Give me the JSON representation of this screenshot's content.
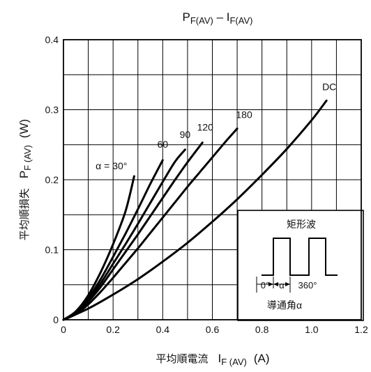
{
  "chart_data": {
    "type": "line",
    "title": {
      "p": "P",
      "p_sub": "F(AV)",
      "dash": " – ",
      "i": "I",
      "i_sub": "F(AV)"
    },
    "xlabel": {
      "jp": "平均順電流",
      "sym": "I",
      "sub": "F (AV)",
      "unit": "(A)"
    },
    "ylabel": {
      "jp": "平均順損失",
      "sym": "P",
      "sub": "F (AV)",
      "unit": "(W)"
    },
    "xlim": [
      0,
      1.2
    ],
    "ylim": [
      0,
      0.4
    ],
    "x_ticks": [
      "0",
      "0.2",
      "0.4",
      "0.6",
      "0.8",
      "1.0",
      "1.2"
    ],
    "y_ticks": [
      "0",
      "0.1",
      "0.2",
      "0.3",
      "0.4"
    ],
    "grid": true,
    "series": [
      {
        "name": "α = 30°",
        "points": [
          [
            0,
            0
          ],
          [
            0.05,
            0.012
          ],
          [
            0.1,
            0.035
          ],
          [
            0.15,
            0.068
          ],
          [
            0.2,
            0.108
          ],
          [
            0.25,
            0.155
          ],
          [
            0.285,
            0.205
          ]
        ]
      },
      {
        "name": "60",
        "points": [
          [
            0,
            0
          ],
          [
            0.05,
            0.011
          ],
          [
            0.1,
            0.031
          ],
          [
            0.15,
            0.058
          ],
          [
            0.2,
            0.09
          ],
          [
            0.25,
            0.123
          ],
          [
            0.3,
            0.158
          ],
          [
            0.35,
            0.194
          ],
          [
            0.4,
            0.228
          ]
        ]
      },
      {
        "name": "90",
        "points": [
          [
            0,
            0
          ],
          [
            0.05,
            0.01
          ],
          [
            0.1,
            0.028
          ],
          [
            0.15,
            0.052
          ],
          [
            0.2,
            0.08
          ],
          [
            0.25,
            0.108
          ],
          [
            0.3,
            0.137
          ],
          [
            0.35,
            0.167
          ],
          [
            0.4,
            0.197
          ],
          [
            0.45,
            0.226
          ],
          [
            0.49,
            0.243
          ]
        ]
      },
      {
        "name": "120",
        "points": [
          [
            0,
            0
          ],
          [
            0.05,
            0.009
          ],
          [
            0.1,
            0.026
          ],
          [
            0.15,
            0.047
          ],
          [
            0.2,
            0.072
          ],
          [
            0.25,
            0.097
          ],
          [
            0.3,
            0.122
          ],
          [
            0.35,
            0.148
          ],
          [
            0.4,
            0.174
          ],
          [
            0.45,
            0.2
          ],
          [
            0.5,
            0.225
          ],
          [
            0.56,
            0.253
          ]
        ]
      },
      {
        "name": "180",
        "points": [
          [
            0,
            0
          ],
          [
            0.05,
            0.008
          ],
          [
            0.1,
            0.022
          ],
          [
            0.15,
            0.04
          ],
          [
            0.2,
            0.06
          ],
          [
            0.25,
            0.081
          ],
          [
            0.3,
            0.102
          ],
          [
            0.35,
            0.124
          ],
          [
            0.4,
            0.146
          ],
          [
            0.45,
            0.168
          ],
          [
            0.5,
            0.19
          ],
          [
            0.55,
            0.211
          ],
          [
            0.6,
            0.232
          ],
          [
            0.65,
            0.253
          ],
          [
            0.7,
            0.273
          ]
        ]
      },
      {
        "name": "DC",
        "points": [
          [
            0,
            0
          ],
          [
            0.1,
            0.016
          ],
          [
            0.2,
            0.036
          ],
          [
            0.3,
            0.058
          ],
          [
            0.4,
            0.083
          ],
          [
            0.5,
            0.11
          ],
          [
            0.6,
            0.14
          ],
          [
            0.7,
            0.172
          ],
          [
            0.8,
            0.207
          ],
          [
            0.9,
            0.244
          ],
          [
            1.0,
            0.285
          ],
          [
            1.06,
            0.313
          ]
        ]
      }
    ],
    "inset": {
      "title": "矩形波",
      "angle_start": "0°",
      "angle_alpha": "α",
      "angle_end": "360°",
      "caption": "導通角α"
    }
  }
}
